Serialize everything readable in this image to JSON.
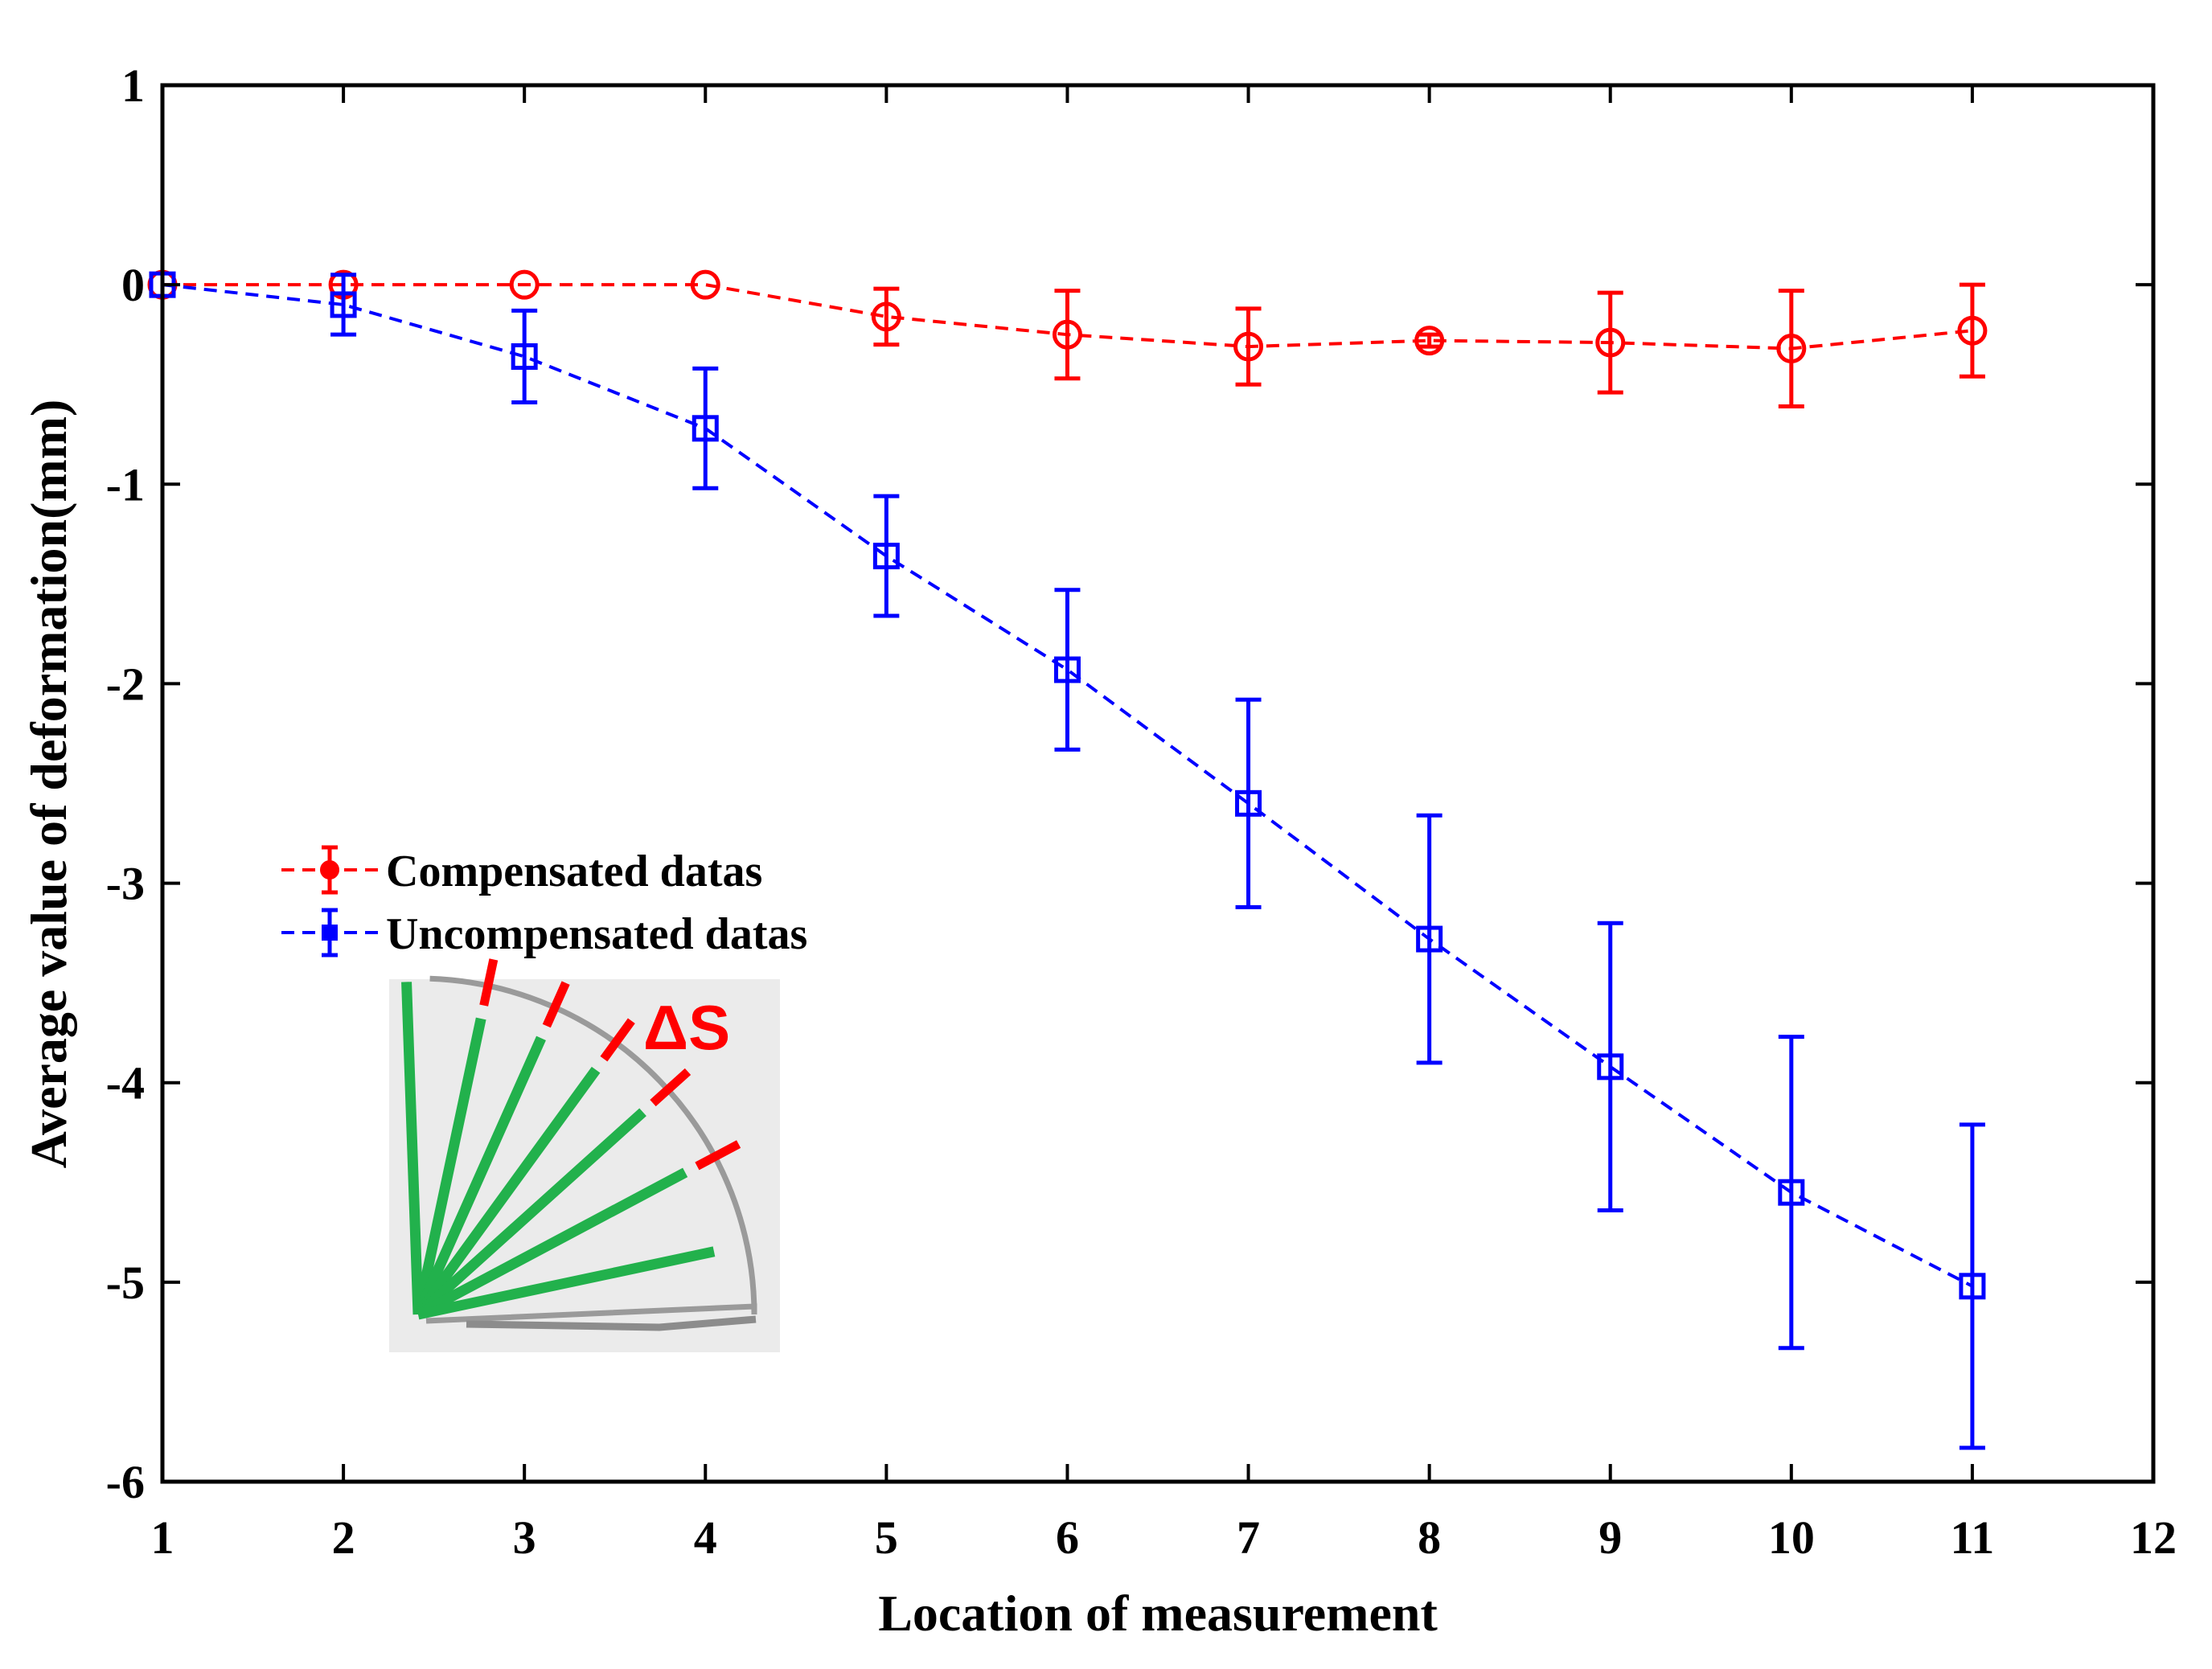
{
  "chart_data": {
    "type": "line",
    "title": "",
    "xlabel": "Location of measurement",
    "ylabel": "Average value of deformation(mm)",
    "xlim": [
      1,
      12
    ],
    "ylim": [
      -6,
      1
    ],
    "xticks": [
      1,
      2,
      3,
      4,
      5,
      6,
      7,
      8,
      9,
      10,
      11,
      12
    ],
    "yticks": [
      1,
      0,
      -1,
      -2,
      -3,
      -4,
      -5,
      -6
    ],
    "grid": false,
    "legend_position": "middle-left",
    "series": [
      {
        "name": "Compensated datas",
        "color": "#ff0000",
        "marker": "circle",
        "line_style": "dashed",
        "x": [
          1,
          2,
          3,
          4,
          5,
          6,
          7,
          8,
          9,
          10,
          11
        ],
        "values": [
          0,
          0,
          0,
          0,
          -0.16,
          -0.25,
          -0.31,
          -0.28,
          -0.29,
          -0.32,
          -0.23
        ],
        "error": [
          0,
          0,
          0,
          0,
          0.14,
          0.22,
          0.19,
          0.03,
          0.25,
          0.29,
          0.23
        ]
      },
      {
        "name": "Uncompensated datas",
        "color": "#0000ff",
        "marker": "square",
        "line_style": "dashed",
        "x": [
          1,
          2,
          3,
          4,
          5,
          6,
          7,
          8,
          9,
          10,
          11
        ],
        "values": [
          0,
          -0.1,
          -0.36,
          -0.72,
          -1.36,
          -1.93,
          -2.6,
          -3.28,
          -3.92,
          -4.55,
          -5.02
        ],
        "error": [
          0,
          0.15,
          0.23,
          0.3,
          0.3,
          0.4,
          0.52,
          0.62,
          0.72,
          0.78,
          0.81
        ]
      }
    ],
    "inset": {
      "label": "ΔS",
      "label_color": "#ff0000",
      "line_color": "#22b14c",
      "background": "#ebebeb"
    }
  }
}
